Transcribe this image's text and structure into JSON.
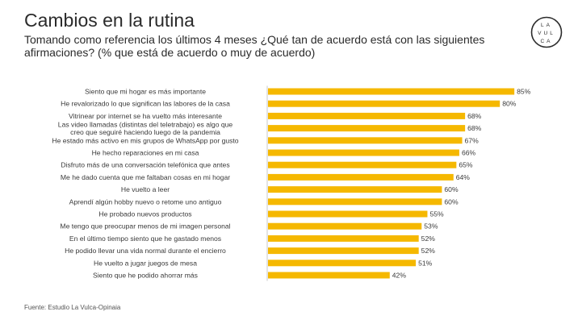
{
  "header": {
    "title": "Cambios en la rutina",
    "subtitle": "Tomando como referencia los últimos 4 meses ¿Qué tan de acuerdo está con las siguientes afirmaciones? (% que está de acuerdo o muy de acuerdo)"
  },
  "logo": {
    "letters": [
      "LA",
      "VUL",
      "CA"
    ]
  },
  "source": "Fuente: Estudio La Vulca-Opinaia",
  "colors": {
    "bar": "#f5b800",
    "text": "#3a3a3a",
    "axis": "#c8c8c8"
  },
  "chart_data": {
    "type": "bar",
    "orientation": "horizontal",
    "categories": [
      "Siento que mi hogar es más importante",
      "He revalorizado lo que significan las labores de la casa",
      "Vitrinear por internet se ha vuelto más interesante",
      "Las video llamadas (distintas del teletrabajo) es algo que creo que seguiré haciendo luego de la pandemia",
      "He estado más activo en mis grupos de WhatsApp por gusto",
      "He hecho reparaciones en mi casa",
      "Disfruto más de una conversación telefónica que antes",
      "Me he dado cuenta que me faltaban cosas en mi hogar",
      "He vuelto a leer",
      "Aprendí algún hobby nuevo o retome uno antiguo",
      "He probado nuevos productos",
      "Me tengo que preocupar menos de mi imagen personal",
      "En el último tiempo siento que he gastado menos",
      "He podido llevar una vida normal durante el encierro",
      "He vuelto a jugar juegos de mesa",
      "Siento que he podido ahorrar más"
    ],
    "values": [
      85,
      80,
      68,
      68,
      67,
      66,
      65,
      64,
      60,
      60,
      55,
      53,
      52,
      52,
      51,
      42
    ],
    "value_labels": [
      "85%",
      "80%",
      "68%",
      "68%",
      "67%",
      "66%",
      "65%",
      "64%",
      "60%",
      "60%",
      "55%",
      "53%",
      "52%",
      "52%",
      "51%",
      "42%"
    ],
    "xlim": [
      0,
      100
    ],
    "grid": false,
    "legend": "none"
  }
}
